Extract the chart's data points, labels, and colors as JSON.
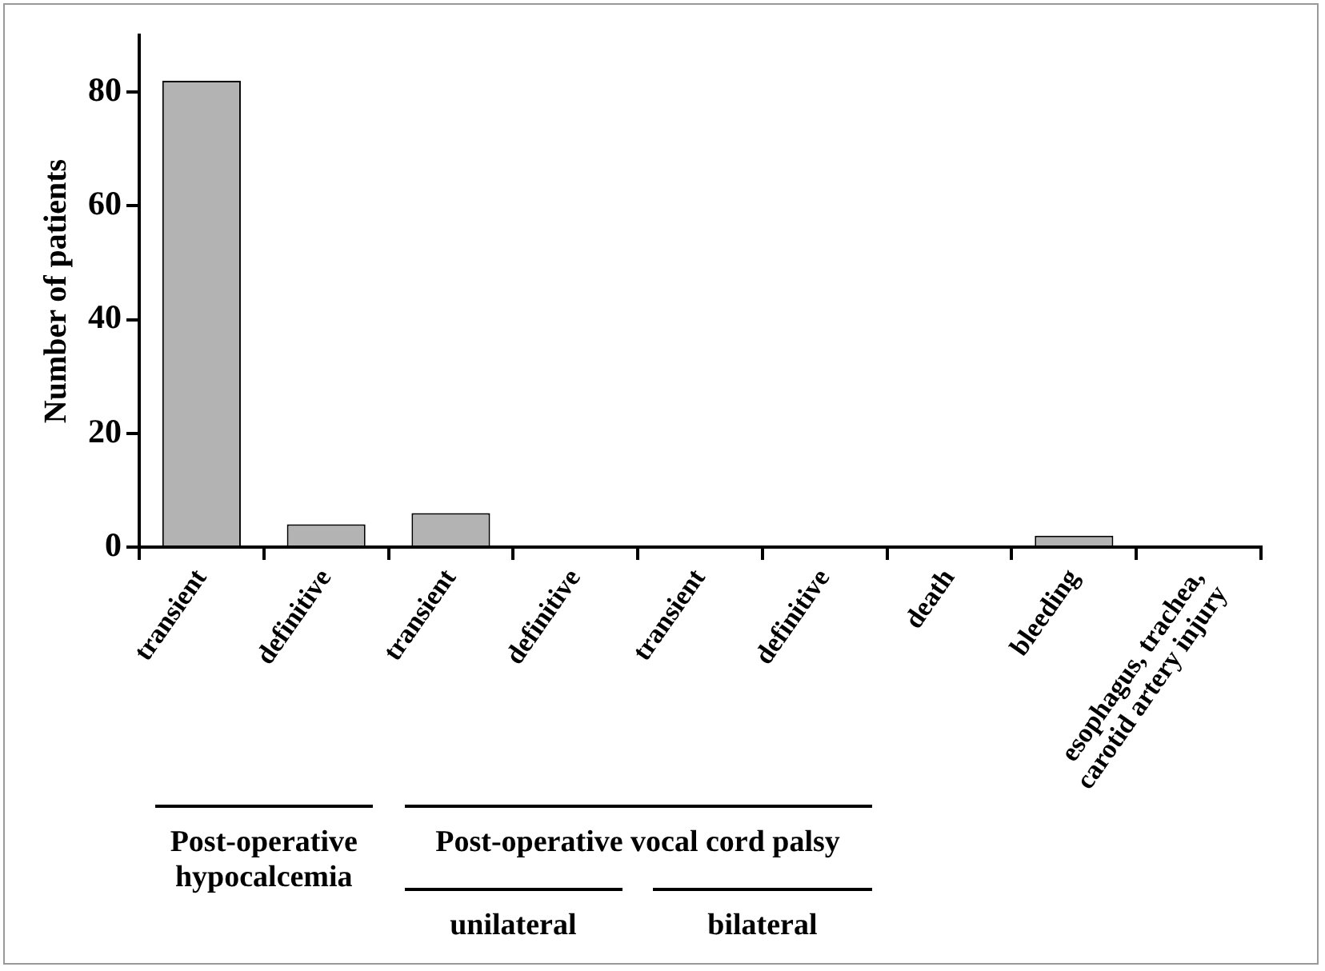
{
  "chart_data": {
    "type": "bar",
    "ylabel": "Number of patients",
    "categories": [
      "transient",
      "definitive",
      "transient",
      "definitive",
      "transient",
      "definitive",
      "death",
      "bleeding",
      "esophagus, trachea, carotid artery injury"
    ],
    "values": [
      82,
      4,
      6,
      0,
      0,
      0,
      0,
      2,
      0
    ],
    "color": "#b3b3b3",
    "ylim": [
      0,
      90
    ],
    "yticks": [
      0,
      20,
      40,
      60,
      80
    ],
    "grid": false,
    "legend": false,
    "annotations": [
      "Post-operative hypocalcemia",
      "Post-operative vocal cord palsy",
      "unilateral",
      "bilateral"
    ]
  }
}
